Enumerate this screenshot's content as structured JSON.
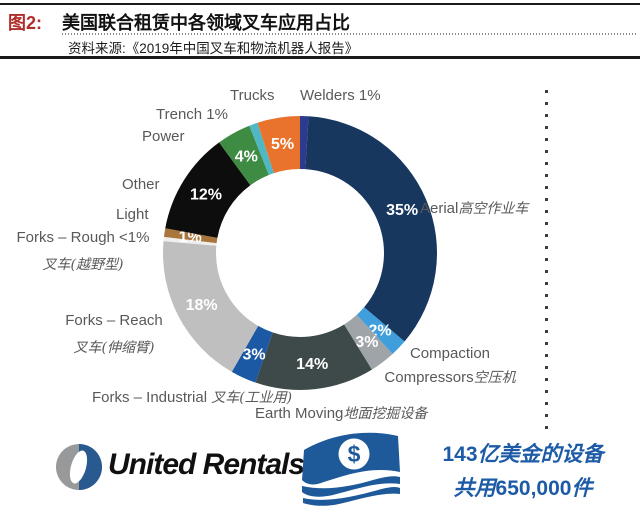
{
  "header": {
    "figure_label": "图2:",
    "title": "美国联合租赁中各领域叉车应用占比",
    "source": "资料来源:《2019年中国叉车和物流机器人报告》"
  },
  "colors": {
    "figure_label_red": "#b02e2a",
    "rule_black": "#1a1a1a",
    "label_gray": "#595959",
    "footer_blue": "#1d5ba6",
    "flag_blue": "#1e5a9a",
    "logo_gray": "#97999b",
    "logo_blue": "#28598f"
  },
  "chart_data": {
    "type": "pie",
    "subtype": "donut",
    "title": "美国联合租赁中各领域叉车应用占比",
    "unit": "%",
    "legend_position": "callout-labels-around-donut",
    "segments": [
      {
        "label": "Welders",
        "value_pct": 1,
        "pct_label": "1%",
        "color": "#2c3a90",
        "show_label": false
      },
      {
        "label": "Aerial",
        "label_cn": "高空作业车",
        "value_pct": 35,
        "pct_label": "35%",
        "color": "#17375e"
      },
      {
        "label": "Compaction",
        "value_pct": 2,
        "pct_label": "2%",
        "color": "#3f9edb"
      },
      {
        "label": "Compressors",
        "label_cn": "空压机",
        "value_pct": 3,
        "pct_label": "3%",
        "color": "#9fa4a8"
      },
      {
        "label": "Earth Moving",
        "label_cn": "地面挖掘设备",
        "value_pct": 14,
        "pct_label": "14%",
        "color": "#3e4a49"
      },
      {
        "label": "Forks - Industrial",
        "label_cn": "叉车(工业用)",
        "value_pct": 3,
        "pct_label": "3%",
        "color": "#1c59a5"
      },
      {
        "label": "Forks - Reach",
        "label_cn": "叉车(伸缩臂)",
        "value_pct": 18,
        "pct_label": "18%",
        "color": "#bfbfbf"
      },
      {
        "label": "Forks - Rough",
        "label_cn": "叉车(越野型)",
        "value_pct": 0.5,
        "pct_label": "<1%",
        "color": "#efeeea",
        "show_label": false
      },
      {
        "label": "Light",
        "value_pct": 1,
        "pct_label": "1%",
        "color": "#a8753c"
      },
      {
        "label": "Other",
        "value_pct": 12,
        "pct_label": "12%",
        "color": "#0d0d0d"
      },
      {
        "label": "Power",
        "value_pct": 4,
        "pct_label": "4%",
        "color": "#3e8c43"
      },
      {
        "label": "Trench",
        "value_pct": 1,
        "pct_label": "1%",
        "color": "#4fb8c4",
        "show_label": false
      },
      {
        "label": "Trucks",
        "value_pct": 5,
        "pct_label": "5%",
        "color": "#e9732c"
      }
    ],
    "ext_labels": {
      "trucks": {
        "en": "Trucks"
      },
      "welders": {
        "en": "Welders 1%"
      },
      "trench": {
        "en": "Trench 1%"
      },
      "power": {
        "en": "Power"
      },
      "other": {
        "en": "Other"
      },
      "light": {
        "en": "Light"
      },
      "forks_rough": {
        "en": "Forks – Rough <1%",
        "cn": "叉车(越野型)"
      },
      "forks_reach": {
        "en": "Forks – Reach",
        "cn": "叉车(伸缩臂)"
      },
      "forks_industrial": {
        "en": "Forks – Industrial ",
        "cn": "叉车(工业用)"
      },
      "earth_moving": {
        "en": "Earth Moving",
        "cn": "地面挖掘设备"
      },
      "compaction": {
        "en": "Compaction"
      },
      "compressors": {
        "en": "Compressors",
        "cn": "空压机"
      },
      "aerial": {
        "en": "Aerial",
        "cn": "高空作业车"
      }
    }
  },
  "footer": {
    "logo_text": "United Rentals",
    "registered_mark": "®",
    "money_icon": "dollar-banknote-icon",
    "stats": {
      "line1_num": "143",
      "line1_cn": "亿美金的设备",
      "line2_cn_prefix": "共用",
      "line2_num": "650,000",
      "line2_cn_suffix": "件"
    }
  }
}
